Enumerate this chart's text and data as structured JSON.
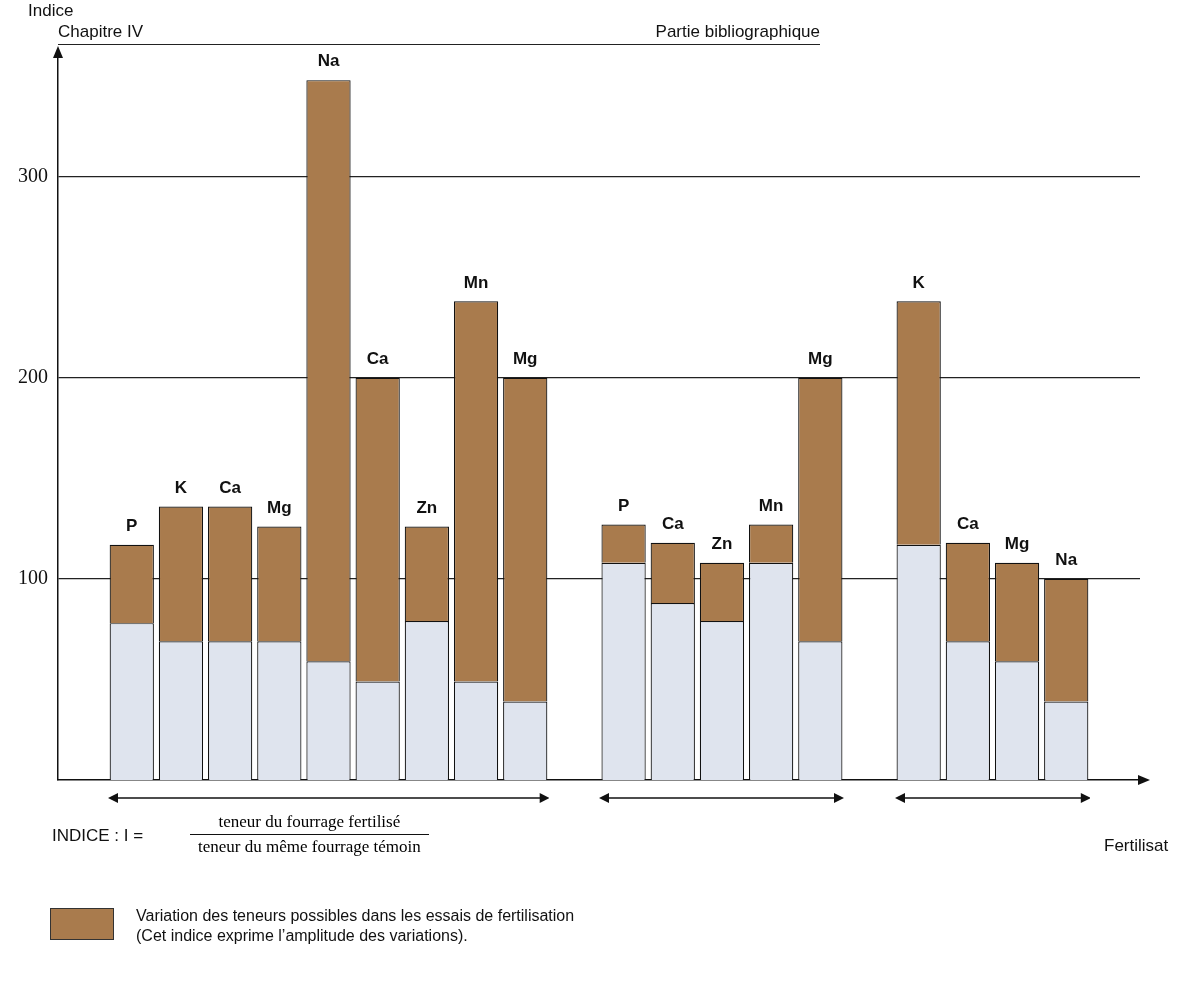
{
  "chart_data": {
    "type": "bar",
    "stacked": true,
    "categories": [
      null,
      "P",
      "K",
      "Ca",
      "Mg",
      "Na",
      "Ca",
      "Zn",
      "Mn",
      "Mg",
      null,
      "P",
      "Ca",
      "Zn",
      "Mn",
      "Mg",
      null,
      "K",
      "Ca",
      "Mg",
      "Na",
      null
    ],
    "series": [
      {
        "color": "#dfe4ee",
        "values": [
          null,
          78,
          69,
          69,
          69,
          59,
          49,
          79,
          49,
          39,
          null,
          108,
          88,
          79,
          108,
          69,
          null,
          117,
          69,
          59,
          39,
          null
        ]
      },
      {
        "name": "Variation des teneurs possibles dans les essais de fertilisation\n(Cet indice exprime l’amplitude des variations).",
        "color": "#a97b4d",
        "values": [
          null,
          39,
          67,
          67,
          57,
          289,
          151,
          47,
          189,
          161,
          null,
          19,
          30,
          29,
          19,
          131,
          null,
          121,
          49,
          49,
          61,
          null
        ]
      }
    ],
    "ylim": [
      0,
      360
    ],
    "yticks": [
      100,
      200,
      300
    ],
    "grid": "y",
    "tick_labels": "y",
    "legend": "bottom left",
    "ylabel": "Indice",
    "xlabel": "Fertilisat",
    "annotations": [
      "Chapitre IV",
      "Partie bibliographique",
      "INDICE : I =",
      "teneur du fourrage fertilisé",
      "teneur du même fourrage témoin"
    ]
  }
}
